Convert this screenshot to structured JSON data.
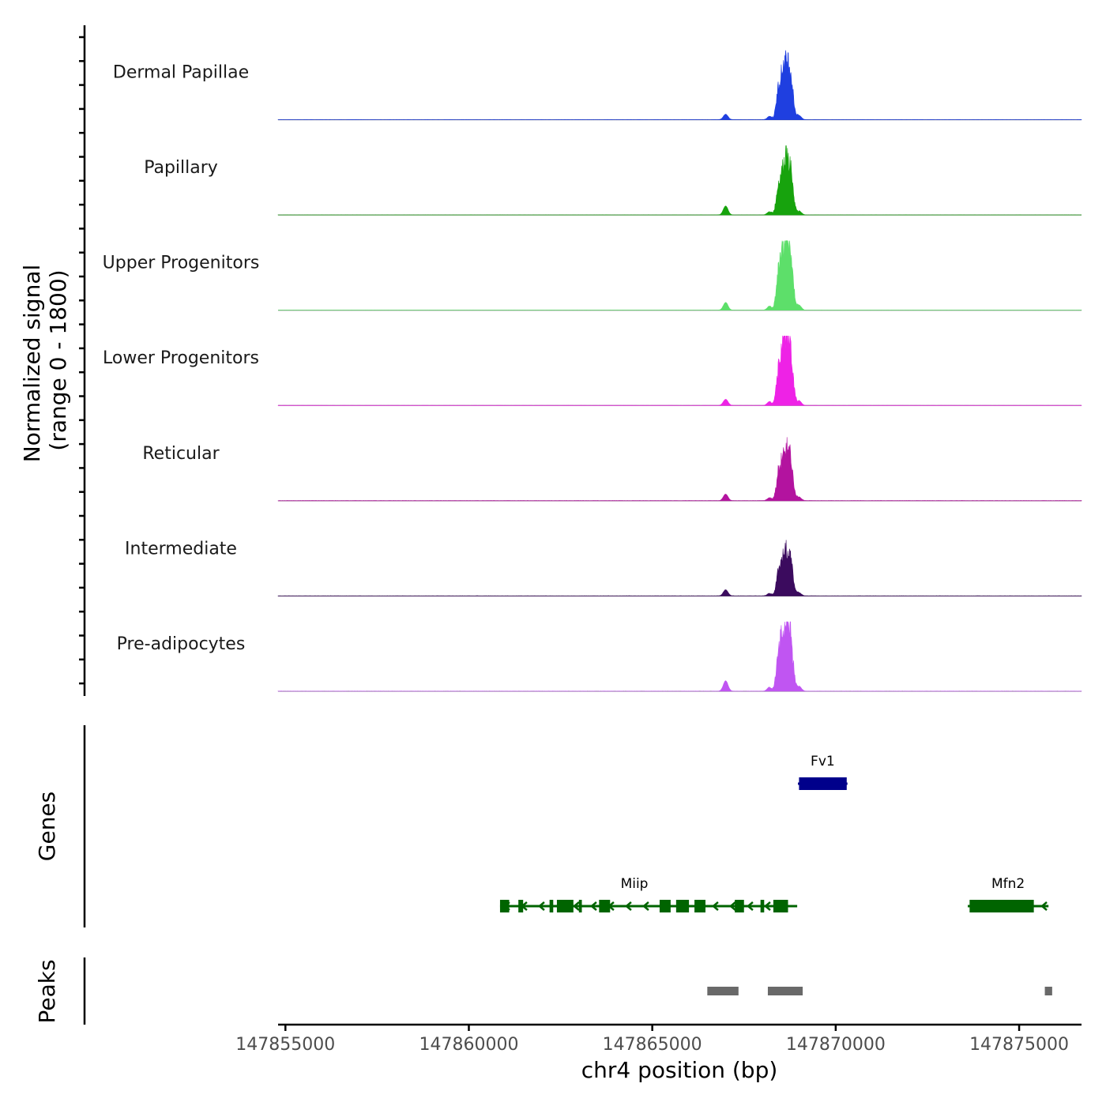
{
  "chart_data": {
    "type": "area",
    "title": "",
    "chromosome": "chr4",
    "xlabel": "chr4 position (bp)",
    "ylabel_line1": "Normalized signal",
    "ylabel_line2": "(range 0 - 1800)",
    "xlim": [
      147854800,
      147876700
    ],
    "ylim": [
      0,
      1800
    ],
    "x_ticks": [
      147855000,
      147860000,
      147865000,
      147870000,
      147875000
    ],
    "x_tick_labels": [
      "147855000",
      "147860000",
      "147865000",
      "147870000",
      "147875000"
    ],
    "peak_shape": [
      {
        "center": 147868600,
        "width": 130,
        "rel": 1.0
      },
      {
        "center": 147868760,
        "width": 110,
        "rel": 0.78
      },
      {
        "center": 147868440,
        "width": 90,
        "rel": 0.45
      },
      {
        "center": 147867000,
        "width": 90,
        "rel": 0.09
      },
      {
        "center": 147868200,
        "width": 90,
        "rel": 0.06
      },
      {
        "center": 147869000,
        "width": 90,
        "rel": 0.07
      }
    ],
    "series": [
      {
        "name": "Dermal Papillae",
        "color": "#1f3fe0",
        "max_signal": 1500,
        "side_peak": 140
      },
      {
        "name": "Papillary",
        "color": "#17a30d",
        "max_signal": 1440,
        "side_peak": 230
      },
      {
        "name": "Upper Progenitors",
        "color": "#5ddf6a",
        "max_signal": 1800,
        "side_peak": 200
      },
      {
        "name": "Lower Progenitors",
        "color": "#ee22e6",
        "max_signal": 1680,
        "side_peak": 160
      },
      {
        "name": "Reticular",
        "color": "#b3139f",
        "max_signal": 1300,
        "side_peak": 170
      },
      {
        "name": "Intermediate",
        "color": "#3b0b5e",
        "max_signal": 1180,
        "side_peak": 160
      },
      {
        "name": "Pre-adipocytes",
        "color": "#c055f2",
        "max_signal": 1800,
        "side_peak": 270
      }
    ],
    "genes_track_label": "Genes",
    "genes": [
      {
        "name": "Fv1",
        "color": "#00008b",
        "start": 147868970,
        "end": 147870320,
        "strand": "+",
        "row": 1,
        "exons": [
          [
            147869000,
            147870300
          ]
        ]
      },
      {
        "name": "Miip",
        "color": "#006400",
        "start": 147860850,
        "end": 147868950,
        "strand": "-",
        "row": 2,
        "exons": [
          [
            147860850,
            147861100
          ],
          [
            147861350,
            147861480
          ],
          [
            147862200,
            147862300
          ],
          [
            147862400,
            147862850
          ],
          [
            147863000,
            147863080
          ],
          [
            147863550,
            147863850
          ],
          [
            147865200,
            147865500
          ],
          [
            147865650,
            147866000
          ],
          [
            147866150,
            147866450
          ],
          [
            147867250,
            147867500
          ],
          [
            147867950,
            147868050
          ],
          [
            147868300,
            147868700
          ]
        ]
      },
      {
        "name": "Mfn2",
        "color": "#006400",
        "start": 147873600,
        "end": 147875800,
        "strand": "-",
        "row": 2,
        "exons": [
          [
            147873650,
            147875400
          ]
        ]
      }
    ],
    "peaks_track_label": "Peaks",
    "peaks_color": "#696969",
    "peaks": [
      [
        147866500,
        147867350
      ],
      [
        147868150,
        147869100
      ],
      [
        147875700,
        147875900
      ]
    ]
  }
}
